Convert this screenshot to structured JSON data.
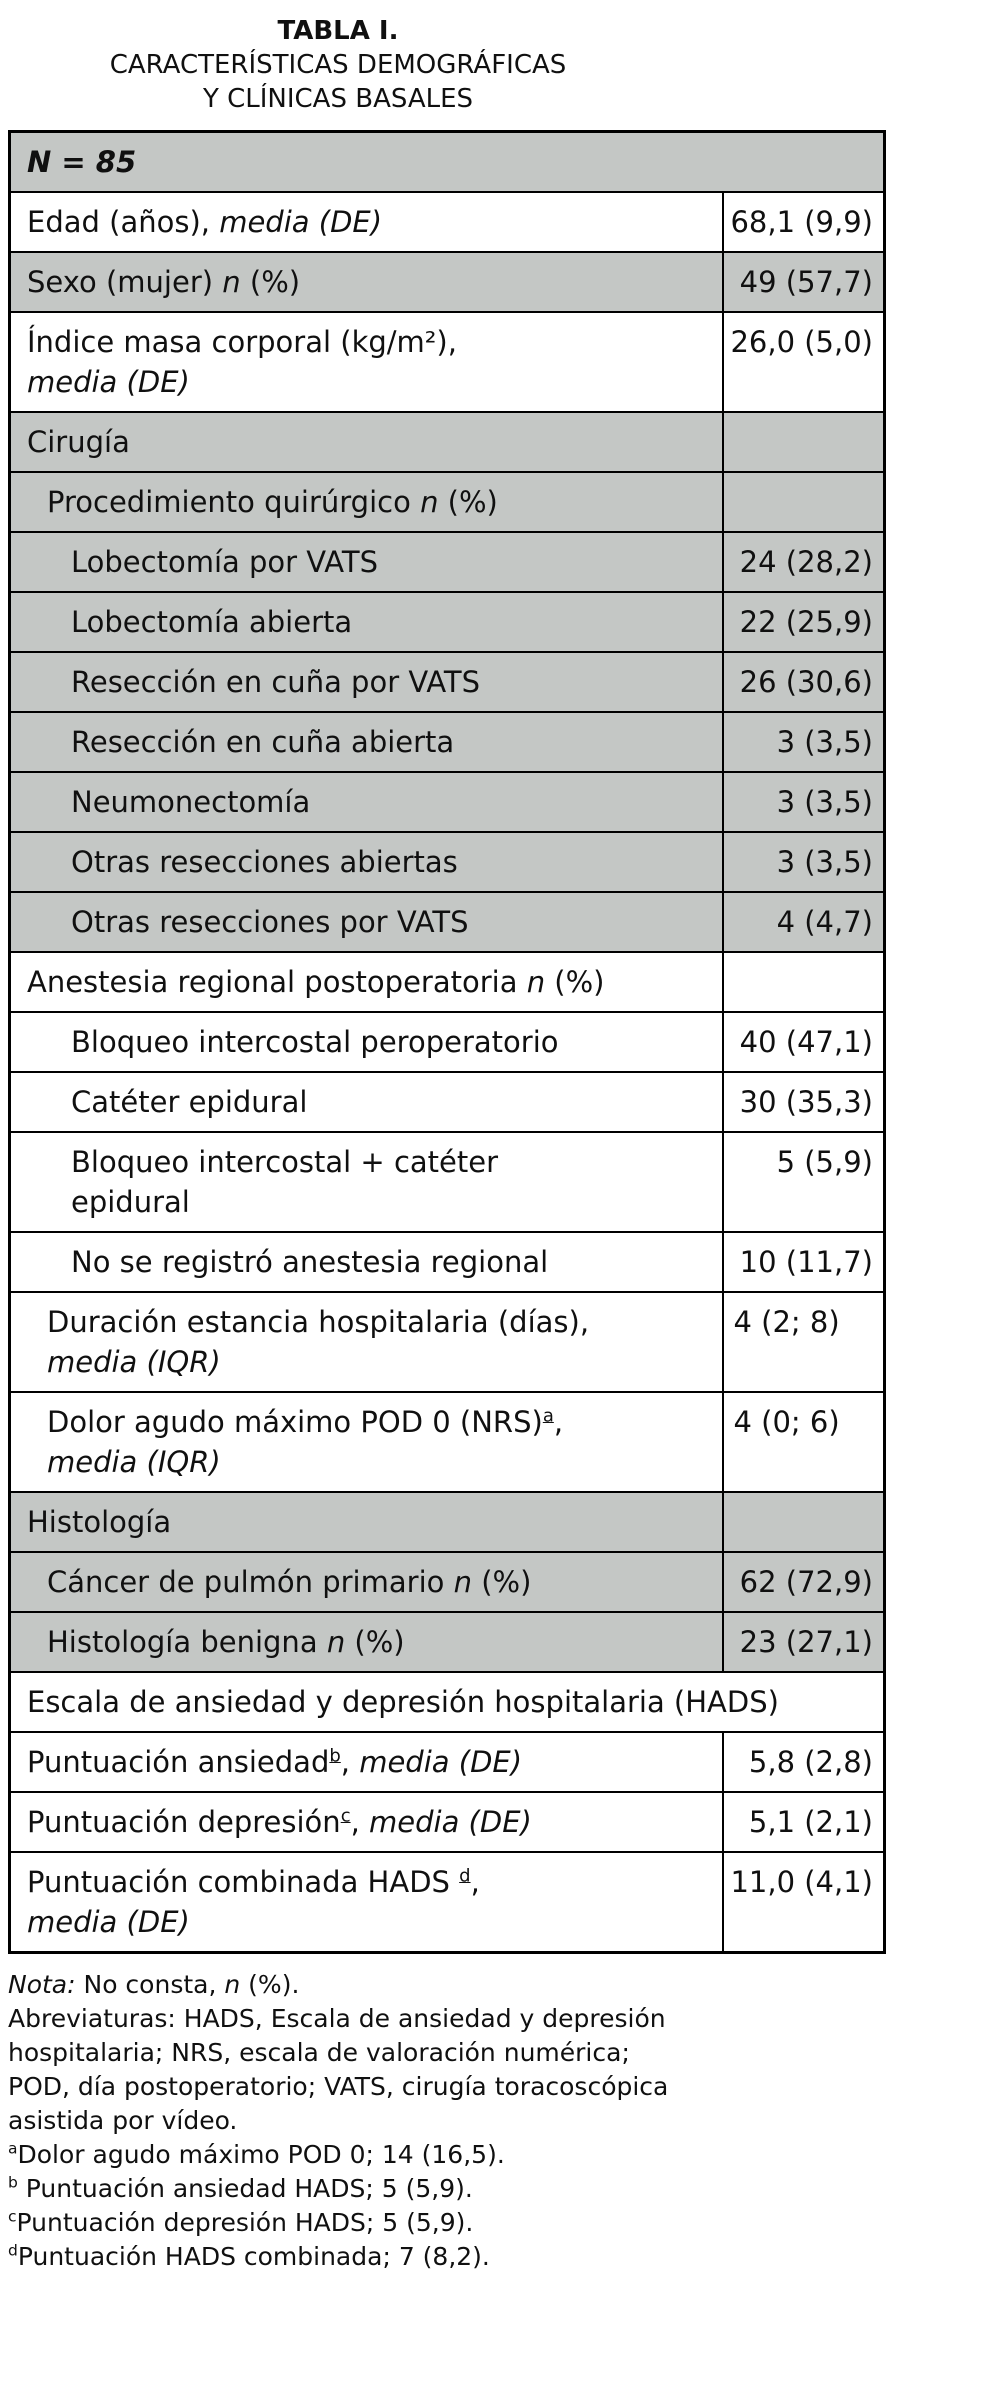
{
  "title": {
    "line1": "TABLA I.",
    "line2": "CARACTERÍSTICAS DEMOGRÁFICAS",
    "line3": "Y CLÍNICAS BASALES"
  },
  "table": {
    "rows": [
      {
        "bg": "g",
        "indent": 0,
        "colspan2": true,
        "label": [
          {
            "t": "N = 85",
            "b": true,
            "i": true
          }
        ],
        "value": ""
      },
      {
        "bg": "w",
        "indent": 0,
        "label": [
          {
            "t": "Edad (años), "
          },
          {
            "t": "media (DE)",
            "i": true
          }
        ],
        "value": "68,1 (9,9)"
      },
      {
        "bg": "g",
        "indent": 0,
        "label": [
          {
            "t": "Sexo (mujer) "
          },
          {
            "t": "n",
            "i": true
          },
          {
            "t": " (%)"
          }
        ],
        "value": "49 (57,7)"
      },
      {
        "bg": "w",
        "indent": 0,
        "label": [
          {
            "t": "Índice masa corporal (kg/m²),"
          },
          {
            "br": true
          },
          {
            "t": "media (DE)",
            "i": true
          }
        ],
        "value": "26,0 (5,0)"
      },
      {
        "bg": "g",
        "indent": 0,
        "label": [
          {
            "t": "Cirugía"
          }
        ],
        "value": ""
      },
      {
        "bg": "g",
        "indent": 1,
        "label": [
          {
            "t": "Procedimiento quirúrgico "
          },
          {
            "t": "n",
            "i": true
          },
          {
            "t": " (%)"
          }
        ],
        "value": ""
      },
      {
        "bg": "g",
        "indent": 2,
        "label": [
          {
            "t": "Lobectomía por VATS"
          }
        ],
        "value": "24 (28,2)"
      },
      {
        "bg": "g",
        "indent": 2,
        "label": [
          {
            "t": "Lobectomía abierta"
          }
        ],
        "value": "22 (25,9)"
      },
      {
        "bg": "g",
        "indent": 2,
        "label": [
          {
            "t": "Resección en cuña por VATS"
          }
        ],
        "value": "26 (30,6)"
      },
      {
        "bg": "g",
        "indent": 2,
        "label": [
          {
            "t": "Resección en cuña abierta"
          }
        ],
        "value": "3 (3,5)"
      },
      {
        "bg": "g",
        "indent": 2,
        "label": [
          {
            "t": "Neumonectomía"
          }
        ],
        "value": "3 (3,5)"
      },
      {
        "bg": "g",
        "indent": 2,
        "label": [
          {
            "t": "Otras resecciones abiertas"
          }
        ],
        "value": "3 (3,5)"
      },
      {
        "bg": "g",
        "indent": 2,
        "label": [
          {
            "t": "Otras resecciones por VATS"
          }
        ],
        "value": "4 (4,7)"
      },
      {
        "bg": "w",
        "indent": 0,
        "label": [
          {
            "t": "Anestesia regional postoperatoria "
          },
          {
            "t": "n",
            "i": true
          },
          {
            "t": " (%)"
          }
        ],
        "value": ""
      },
      {
        "bg": "w",
        "indent": 2,
        "label": [
          {
            "t": "Bloqueo intercostal peroperatorio"
          }
        ],
        "value": "40 (47,1)"
      },
      {
        "bg": "w",
        "indent": 2,
        "label": [
          {
            "t": "Catéter epidural"
          }
        ],
        "value": "30 (35,3)"
      },
      {
        "bg": "w",
        "indent": 2,
        "label": [
          {
            "t": "Bloqueo intercostal + catéter"
          },
          {
            "br": true
          },
          {
            "t": "epidural"
          }
        ],
        "value": "5 (5,9)"
      },
      {
        "bg": "w",
        "indent": 2,
        "label": [
          {
            "t": "No se registró anestesia regional"
          }
        ],
        "value": "10 (11,7)"
      },
      {
        "bg": "w",
        "indent": 1,
        "align": "left",
        "label": [
          {
            "t": "Duración estancia hospitalaria (días),"
          },
          {
            "br": true
          },
          {
            "t": "media (IQR)",
            "i": true
          }
        ],
        "value": "4 (2; 8)"
      },
      {
        "bg": "w",
        "indent": 1,
        "align": "left",
        "label": [
          {
            "t": "Dolor agudo máximo POD 0 (NRS)"
          },
          {
            "t": "a",
            "sup": true,
            "u": true
          },
          {
            "t": ","
          },
          {
            "br": true
          },
          {
            "t": "media (IQR)",
            "i": true
          }
        ],
        "value": "4 (0; 6)"
      },
      {
        "bg": "g",
        "indent": 0,
        "label": [
          {
            "t": "Histología"
          }
        ],
        "value": ""
      },
      {
        "bg": "g",
        "indent": 1,
        "label": [
          {
            "t": "Cáncer de pulmón primario "
          },
          {
            "t": "n",
            "i": true
          },
          {
            "t": " (%)"
          }
        ],
        "value": "62 (72,9)"
      },
      {
        "bg": "g",
        "indent": 1,
        "label": [
          {
            "t": "Histología benigna "
          },
          {
            "t": "n",
            "i": true
          },
          {
            "t": " (%)"
          }
        ],
        "value": "23 (27,1)"
      },
      {
        "bg": "w",
        "indent": 0,
        "colspan2": true,
        "label": [
          {
            "t": "Escala de ansiedad y depresión hospitalaria (HADS)"
          }
        ],
        "value": ""
      },
      {
        "bg": "w",
        "indent": 0,
        "label": [
          {
            "t": "Puntuación ansiedad"
          },
          {
            "t": "b",
            "sup": true,
            "u": true
          },
          {
            "t": ", "
          },
          {
            "t": "media (DE)",
            "i": true
          }
        ],
        "value": "5,8 (2,8)"
      },
      {
        "bg": "w",
        "indent": 0,
        "label": [
          {
            "t": "Puntuación depresión"
          },
          {
            "t": "c",
            "sup": true,
            "u": true
          },
          {
            "t": ", "
          },
          {
            "t": "media (DE)",
            "i": true
          }
        ],
        "value": "5,1 (2,1)"
      },
      {
        "bg": "w",
        "indent": 0,
        "label": [
          {
            "t": "Puntuación combinada HADS "
          },
          {
            "t": "d",
            "sup": true,
            "u": true
          },
          {
            "t": ","
          },
          {
            "br": true
          },
          {
            "t": "media (DE)",
            "i": true
          }
        ],
        "value": "11,0 (4,1)"
      }
    ]
  },
  "notes": {
    "lines": [
      {
        "segs": [
          {
            "t": "Nota:",
            "i": true
          },
          {
            "t": " No consta, "
          },
          {
            "t": "n",
            "i": true
          },
          {
            "t": " (%)."
          }
        ]
      },
      {
        "segs": [
          {
            "t": "Abreviaturas: HADS, Escala de ansiedad y depresión hospitalaria; NRS, escala de valoración numérica; POD, día postoperatorio; VATS, cirugía toracoscópica asistida por vídeo."
          }
        ]
      },
      {
        "segs": [
          {
            "t": "a",
            "sup": true
          },
          {
            "t": "Dolor agudo máximo POD 0; 14 (16,5)."
          }
        ]
      },
      {
        "segs": [
          {
            "t": "b",
            "sup": true
          },
          {
            "t": " Puntuación ansiedad HADS; 5 (5,9)."
          }
        ]
      },
      {
        "segs": [
          {
            "t": "c",
            "sup": true
          },
          {
            "t": "Puntuación depresión HADS; 5 (5,9)."
          }
        ]
      },
      {
        "segs": [
          {
            "t": "d",
            "sup": true
          },
          {
            "t": "Puntuación HADS combinada; 7 (8,2)."
          }
        ]
      }
    ]
  },
  "colors": {
    "row_gray": "#c4c7c5",
    "border": "#000000",
    "text": "#101010"
  }
}
